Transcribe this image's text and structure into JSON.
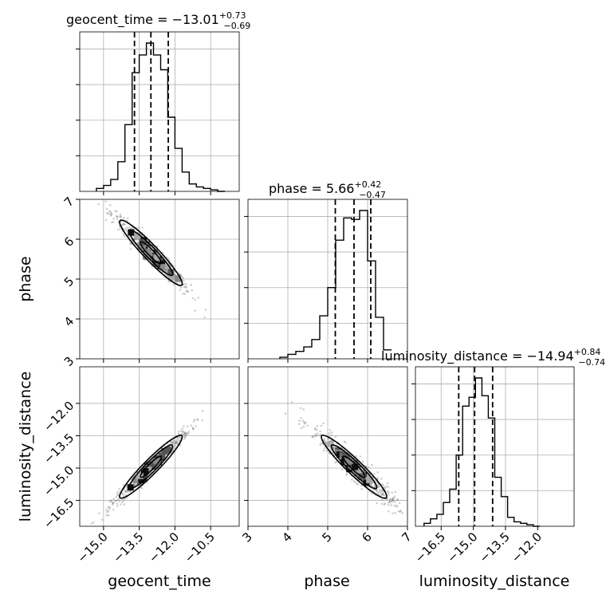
{
  "params": [
    "geocent_time",
    "phase",
    "luminosity_distance"
  ],
  "titles": [
    {
      "name": "geocent_time",
      "median": "−13.01",
      "plus": "+0.73",
      "minus": "−0.69"
    },
    {
      "name": "phase",
      "median": "5.66",
      "plus": "+0.42",
      "minus": "−0.47"
    },
    {
      "name": "luminosity_distance",
      "median": "−14.94",
      "plus": "+0.84",
      "minus": "−0.74"
    }
  ],
  "axis_labels": {
    "x": [
      "geocent_time",
      "phase",
      "luminosity_distance"
    ],
    "y_phase": "phase",
    "y_ld": "luminosity_distance"
  },
  "tick_labels": {
    "geocent_time": [
      "−15.0",
      "−13.5",
      "−12.0",
      "−10.5"
    ],
    "phase": [
      "3",
      "4",
      "5",
      "6",
      "7"
    ],
    "luminosity_distance": [
      "−16.5",
      "−15.0",
      "−13.5",
      "−12.0"
    ]
  },
  "chart_data": {
    "type": "corner",
    "parameters": [
      "geocent_time",
      "phase",
      "luminosity_distance"
    ],
    "ranges": {
      "geocent_time": [
        -16.0,
        -9.3
      ],
      "phase": [
        3,
        7
      ],
      "luminosity_distance": [
        -17.7,
        -10.3
      ]
    },
    "ticks": {
      "geocent_time": [
        -15.0,
        -13.5,
        -12.0,
        -10.5
      ],
      "phase": [
        3,
        4,
        5,
        6,
        7
      ],
      "luminosity_distance": [
        -16.5,
        -15.0,
        -13.5,
        -12.0
      ]
    },
    "quantiles": {
      "geocent_time": [
        -13.7,
        -13.01,
        -12.28
      ],
      "phase": [
        5.19,
        5.66,
        6.08
      ],
      "luminosity_distance": [
        -15.68,
        -14.94,
        -14.1
      ]
    },
    "histograms": {
      "geocent_time": {
        "edges": [
          -15.3,
          -15.0,
          -14.7,
          -14.4,
          -14.1,
          -13.8,
          -13.5,
          -13.2,
          -12.9,
          -12.6,
          -12.3,
          -12.0,
          -11.7,
          -11.4,
          -11.1,
          -10.8,
          -10.5,
          -10.2,
          -9.9
        ],
        "counts": [
          0.02,
          0.04,
          0.08,
          0.2,
          0.45,
          0.8,
          0.92,
          1.0,
          0.92,
          0.82,
          0.5,
          0.29,
          0.13,
          0.05,
          0.03,
          0.02,
          0.01,
          0.0
        ]
      },
      "phase": {
        "edges": [
          3.8,
          4.0,
          4.2,
          4.4,
          4.6,
          4.8,
          5.0,
          5.2,
          5.4,
          5.6,
          5.8,
          6.0,
          6.2,
          6.4,
          6.6
        ],
        "counts": [
          0.01,
          0.03,
          0.05,
          0.08,
          0.13,
          0.29,
          0.48,
          0.8,
          0.95,
          0.94,
          1.0,
          0.66,
          0.28,
          0.06
        ]
      },
      "luminosity_distance": {
        "edges": [
          -17.3,
          -17.0,
          -16.7,
          -16.4,
          -16.1,
          -15.8,
          -15.5,
          -15.2,
          -14.9,
          -14.6,
          -14.3,
          -14.0,
          -13.7,
          -13.4,
          -13.1,
          -12.8,
          -12.5,
          -12.2,
          -11.9
        ],
        "counts": [
          0.02,
          0.05,
          0.08,
          0.16,
          0.25,
          0.48,
          0.81,
          0.87,
          1.0,
          0.88,
          0.73,
          0.33,
          0.2,
          0.06,
          0.03,
          0.02,
          0.01,
          0.0
        ]
      }
    },
    "scatter_2d": [
      {
        "x": "geocent_time",
        "y": "phase",
        "center": [
          -13.01,
          5.66
        ],
        "corr": -0.97
      },
      {
        "x": "geocent_time",
        "y": "luminosity_distance",
        "center": [
          -13.01,
          -14.94
        ],
        "corr": 0.98
      },
      {
        "x": "phase",
        "y": "luminosity_distance",
        "center": [
          5.66,
          -14.94
        ],
        "corr": -0.95
      }
    ],
    "grid": true
  }
}
